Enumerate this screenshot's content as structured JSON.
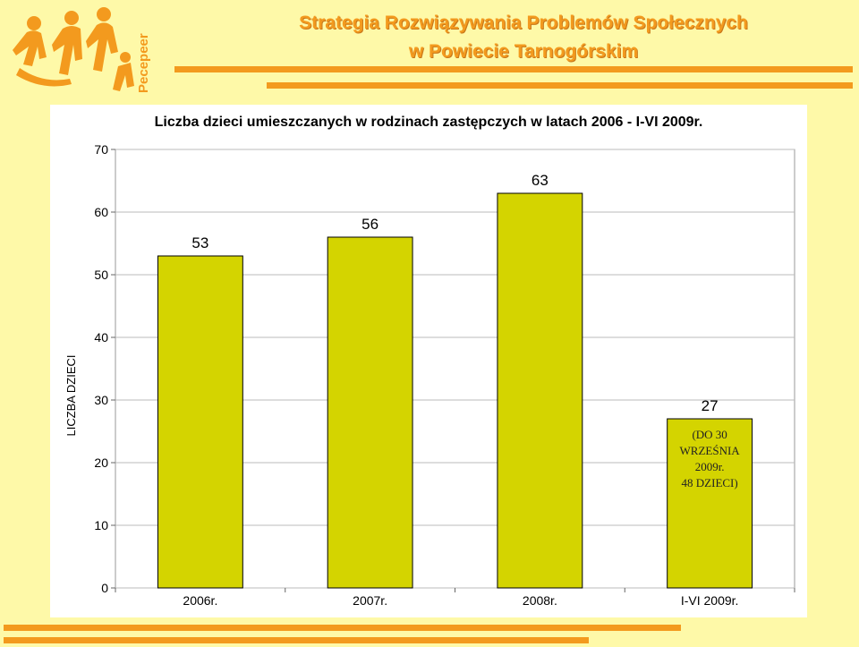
{
  "header": {
    "title_line1": "Strategia Rozwiązywania Problemów Społecznych",
    "title_line2": "w Powiecie Tarnogórskim",
    "logo_text": "Pecepeer"
  },
  "colors": {
    "background": "#FEF9A8",
    "accent": "#F39A1E",
    "bar": "#D4D400",
    "bar_stroke": "#000000",
    "grid": "#BBBBBB"
  },
  "chart_data": {
    "type": "bar",
    "title": "Liczba dzieci umieszczanych w rodzinach zastępczych w latach 2006 - I-VI 2009r.",
    "xlabel": "",
    "ylabel": "LICZBA DZIECI",
    "categories": [
      "2006r.",
      "2007r.",
      "2008r.",
      "I-VI 2009r."
    ],
    "values": [
      53,
      56,
      63,
      27
    ],
    "data_labels": [
      "53",
      "56",
      "63",
      "27"
    ],
    "ylim": [
      0,
      70
    ],
    "yticks": [
      0,
      10,
      20,
      30,
      40,
      50,
      60,
      70
    ],
    "grid": true,
    "legend": "none",
    "annotations": [
      {
        "category": "I-VI 2009r.",
        "lines": [
          "(DO 30",
          "WRZEŚNIA",
          "2009r.",
          "48 DZIECI)"
        ]
      }
    ]
  }
}
